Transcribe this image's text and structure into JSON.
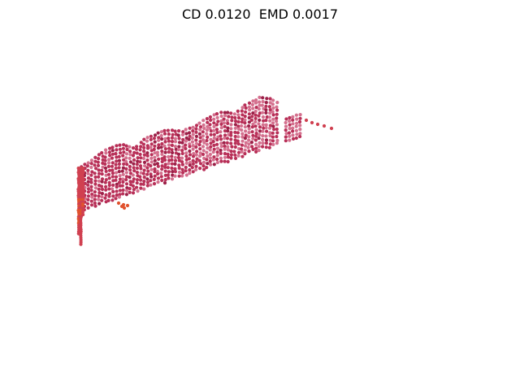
{
  "figure": {
    "title": "CD 0.0120  EMD 0.0017"
  },
  "point_cloud": {
    "colors": {
      "main": "#b83058",
      "light": "#d4708e",
      "dark": "#9c2048",
      "accent": "#e0522e",
      "edge": "#d04050"
    }
  }
}
